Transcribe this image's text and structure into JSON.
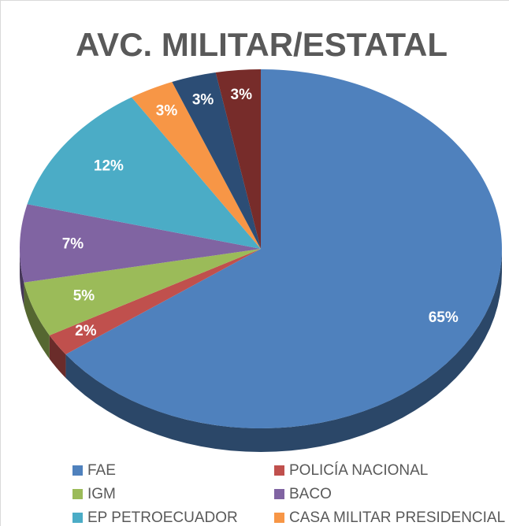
{
  "chart_data": {
    "type": "pie",
    "title": "AVC. MILITAR/ESTATAL",
    "categories": [
      "FAE",
      "POLICÍA NACIONAL",
      "IGM",
      "BACO",
      "EP PETROECUADOR",
      "CASA MILITAR PRESIDENCIAL",
      null,
      null
    ],
    "values": [
      65,
      2,
      5,
      7,
      12,
      3,
      3,
      3
    ],
    "value_labels": [
      "65%",
      "2%",
      "5%",
      "7%",
      "12%",
      "3%",
      "3%",
      "3%"
    ],
    "colors": [
      "#4f81bd",
      "#c0504d",
      "#9bbb59",
      "#8064a2",
      "#4bacc6",
      "#f79646",
      "#2c4d75",
      "#772c2a"
    ],
    "legend": "bottom"
  }
}
